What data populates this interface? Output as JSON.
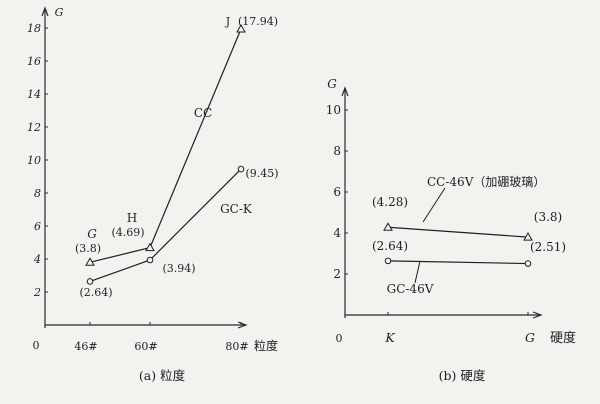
{
  "chart_data": [
    {
      "type": "line",
      "title": "",
      "caption": "(a) 粒度",
      "xlabel": "粒度",
      "ylabel": "G",
      "origin_label": "0",
      "ylim": [
        0,
        18
      ],
      "y_ticks": [
        2,
        4,
        6,
        8,
        10,
        12,
        14,
        16,
        18
      ],
      "categories": [
        "46#",
        "60#",
        "80#"
      ],
      "series": [
        {
          "name": "CC",
          "marker": "triangle",
          "points": [
            {
              "x": "46#",
              "y": 3.8,
              "letter": "G",
              "value_label": "(3.8)"
            },
            {
              "x": "60#",
              "y": 4.69,
              "letter": "H",
              "value_label": "(4.69)"
            },
            {
              "x": "80#",
              "y": 17.94,
              "letter": "J",
              "value_label": "(17.94)"
            }
          ]
        },
        {
          "name": "GC-K",
          "marker": "circle",
          "points": [
            {
              "x": "46#",
              "y": 2.64,
              "value_label": "(2.64)"
            },
            {
              "x": "60#",
              "y": 3.94,
              "value_label": "(3.94)"
            },
            {
              "x": "80#",
              "y": 9.45,
              "value_label": "(9.45)"
            }
          ]
        }
      ]
    },
    {
      "type": "line",
      "title": "",
      "caption": "(b) 硬度",
      "xlabel": "硬度",
      "ylabel": "G",
      "origin_label": "0",
      "ylim": [
        0,
        10
      ],
      "y_ticks": [
        2,
        4,
        6,
        8,
        10
      ],
      "categories": [
        "K",
        "G"
      ],
      "series": [
        {
          "name": "CC-46V（加硼玻璃）",
          "marker": "triangle",
          "points": [
            {
              "x": "K",
              "y": 4.28,
              "value_label": "(4.28)"
            },
            {
              "x": "G",
              "y": 3.8,
              "value_label": "(3.8)"
            }
          ]
        },
        {
          "name": "GC-46V",
          "marker": "circle",
          "points": [
            {
              "x": "K",
              "y": 2.64,
              "value_label": "(2.64)"
            },
            {
              "x": "G",
              "y": 2.51,
              "value_label": "(2.51)"
            }
          ]
        }
      ]
    }
  ]
}
